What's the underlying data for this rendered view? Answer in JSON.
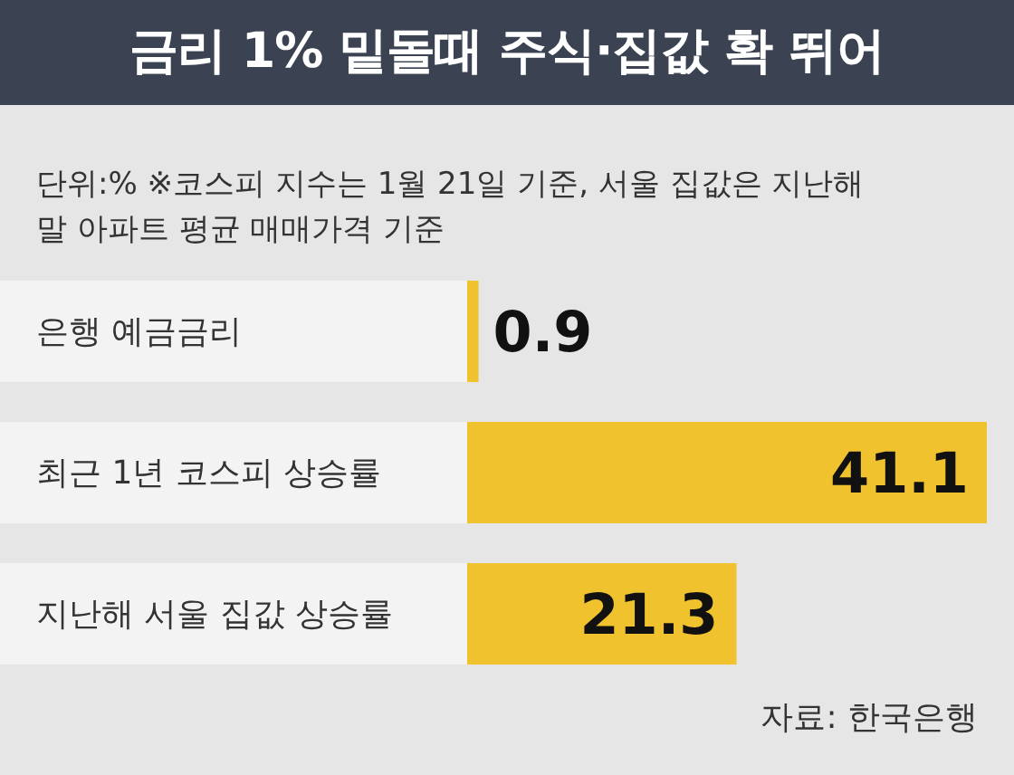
{
  "chart_data": {
    "type": "bar",
    "orientation": "horizontal",
    "title": "금리 1% 밑돌때 주식·집값 확 뛰어",
    "subtitle": "단위:%  ※코스피 지수는 1월 21일 기준, 서울 집값은 지난해말 아파트 평균 매매가격 기준",
    "categories": [
      "은행 예금금리",
      "최근 1년 코스피 상승률",
      "지난해 서울 집값 상승률"
    ],
    "values": [
      0.9,
      41.1,
      21.3
    ],
    "color": "#f0c22e",
    "data_labels": true,
    "annotations": [
      "자료: 한국은행"
    ]
  }
}
